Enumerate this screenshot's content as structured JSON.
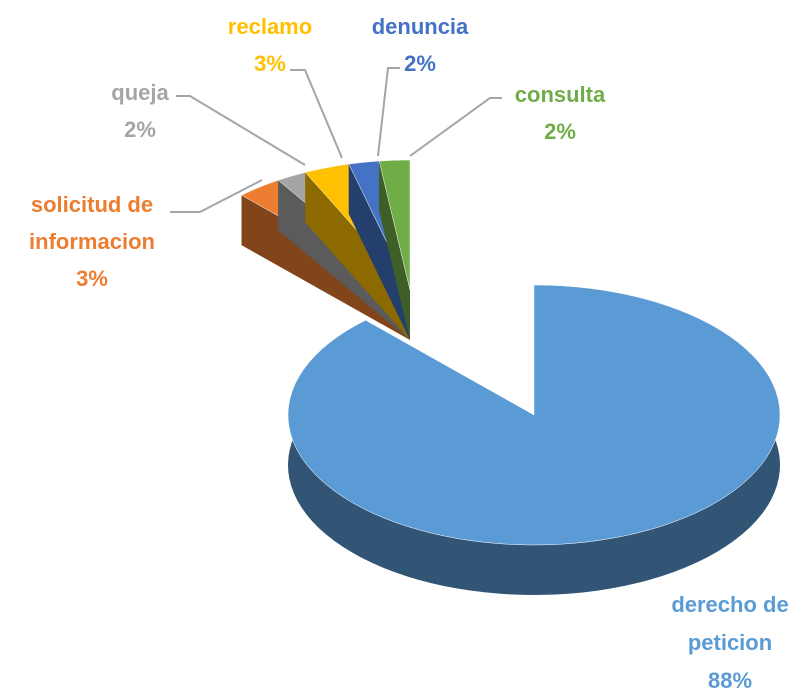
{
  "chart_data": {
    "type": "pie",
    "categories": [
      "derecho de peticion",
      "solicitud de informacion",
      "queja",
      "reclamo",
      "denuncia",
      "consulta"
    ],
    "values": [
      88,
      3,
      2,
      3,
      2,
      2
    ],
    "value_labels": [
      "88%",
      "3%",
      "2%",
      "3%",
      "2%",
      "2%"
    ],
    "colors": [
      "#5b9bd5",
      "#ed7d31",
      "#a5a5a5",
      "#ffc000",
      "#4472c4",
      "#70ad47"
    ]
  }
}
